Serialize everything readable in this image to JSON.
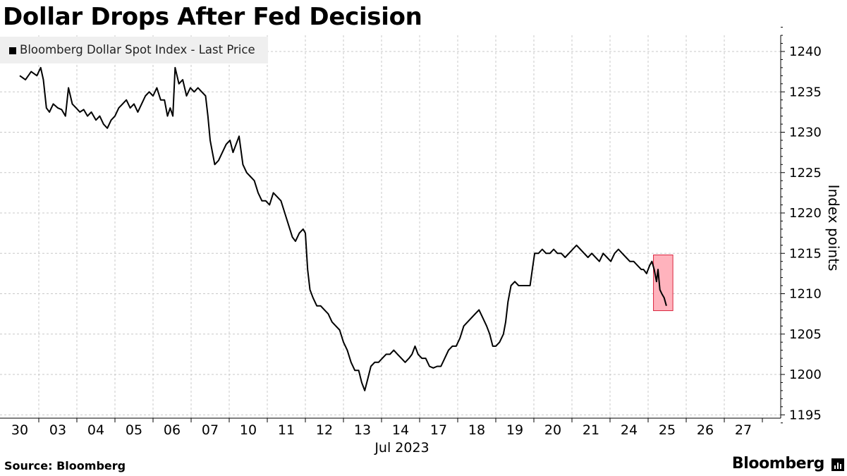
{
  "title": "Dollar Drops After Fed Decision",
  "legend": {
    "label": "Bloomberg Dollar Spot Index - Last Price"
  },
  "source": "Source: Bloomberg",
  "brand": "Bloomberg",
  "chart_data": {
    "type": "line",
    "title": "Dollar Drops After Fed Decision",
    "series": [
      {
        "name": "Bloomberg Dollar Spot Index - Last Price",
        "color": "#000000"
      }
    ],
    "ylabel": "Index points",
    "xlabel": "Jul 2023",
    "ylim": [
      1194,
      1243
    ],
    "yticks": [
      1195,
      1200,
      1205,
      1210,
      1215,
      1220,
      1225,
      1230,
      1235,
      1240
    ],
    "grid": true,
    "x_labels": [
      "30",
      "03",
      "04",
      "05",
      "06",
      "07",
      "10",
      "11",
      "12",
      "13",
      "14",
      "17",
      "18",
      "19",
      "20",
      "21",
      "24",
      "25",
      "26",
      "27"
    ],
    "x_month_label": "Jul 2023",
    "points": [
      [
        0.0,
        1237.0
      ],
      [
        0.15,
        1236.5
      ],
      [
        0.3,
        1237.5
      ],
      [
        0.45,
        1237.0
      ],
      [
        0.55,
        1238.0
      ],
      [
        0.62,
        1236.5
      ],
      [
        0.7,
        1233.0
      ],
      [
        0.78,
        1232.5
      ],
      [
        0.88,
        1233.5
      ],
      [
        1.0,
        1233.0
      ],
      [
        1.1,
        1232.8
      ],
      [
        1.2,
        1232.0
      ],
      [
        1.28,
        1235.5
      ],
      [
        1.38,
        1233.5
      ],
      [
        1.48,
        1233.0
      ],
      [
        1.58,
        1232.5
      ],
      [
        1.68,
        1232.8
      ],
      [
        1.78,
        1232.0
      ],
      [
        1.88,
        1232.5
      ],
      [
        2.0,
        1231.5
      ],
      [
        2.1,
        1232.0
      ],
      [
        2.2,
        1231.0
      ],
      [
        2.3,
        1230.5
      ],
      [
        2.4,
        1231.5
      ],
      [
        2.5,
        1232.0
      ],
      [
        2.6,
        1233.0
      ],
      [
        2.7,
        1233.5
      ],
      [
        2.8,
        1234.0
      ],
      [
        2.9,
        1233.0
      ],
      [
        3.0,
        1233.5
      ],
      [
        3.1,
        1232.5
      ],
      [
        3.2,
        1233.5
      ],
      [
        3.3,
        1234.5
      ],
      [
        3.4,
        1235.0
      ],
      [
        3.5,
        1234.5
      ],
      [
        3.6,
        1235.5
      ],
      [
        3.7,
        1234.0
      ],
      [
        3.8,
        1234.0
      ],
      [
        3.88,
        1232.0
      ],
      [
        3.95,
        1233.0
      ],
      [
        4.02,
        1232.0
      ],
      [
        4.08,
        1238.0
      ],
      [
        4.18,
        1236.0
      ],
      [
        4.28,
        1236.5
      ],
      [
        4.38,
        1234.5
      ],
      [
        4.48,
        1235.5
      ],
      [
        4.58,
        1235.0
      ],
      [
        4.68,
        1235.5
      ],
      [
        4.78,
        1235.0
      ],
      [
        4.88,
        1234.5
      ],
      [
        4.94,
        1232.0
      ],
      [
        5.0,
        1229.0
      ],
      [
        5.06,
        1227.5
      ],
      [
        5.12,
        1226.0
      ],
      [
        5.22,
        1226.5
      ],
      [
        5.32,
        1227.5
      ],
      [
        5.42,
        1228.5
      ],
      [
        5.52,
        1229.0
      ],
      [
        5.6,
        1227.5
      ],
      [
        5.68,
        1228.5
      ],
      [
        5.76,
        1229.5
      ],
      [
        5.86,
        1226.0
      ],
      [
        5.96,
        1225.0
      ],
      [
        6.06,
        1224.5
      ],
      [
        6.16,
        1224.0
      ],
      [
        6.26,
        1222.5
      ],
      [
        6.36,
        1221.5
      ],
      [
        6.46,
        1221.5
      ],
      [
        6.56,
        1221.0
      ],
      [
        6.66,
        1222.5
      ],
      [
        6.76,
        1222.0
      ],
      [
        6.86,
        1221.5
      ],
      [
        6.96,
        1220.0
      ],
      [
        7.06,
        1218.5
      ],
      [
        7.16,
        1217.0
      ],
      [
        7.24,
        1216.5
      ],
      [
        7.34,
        1217.5
      ],
      [
        7.44,
        1218.0
      ],
      [
        7.5,
        1217.5
      ],
      [
        7.56,
        1213.0
      ],
      [
        7.62,
        1210.5
      ],
      [
        7.7,
        1209.5
      ],
      [
        7.8,
        1208.5
      ],
      [
        7.9,
        1208.5
      ],
      [
        8.0,
        1208.0
      ],
      [
        8.1,
        1207.5
      ],
      [
        8.2,
        1206.5
      ],
      [
        8.3,
        1206.0
      ],
      [
        8.4,
        1205.5
      ],
      [
        8.5,
        1204.0
      ],
      [
        8.6,
        1203.0
      ],
      [
        8.7,
        1201.5
      ],
      [
        8.8,
        1200.5
      ],
      [
        8.9,
        1200.5
      ],
      [
        8.98,
        1199.0
      ],
      [
        9.06,
        1198.0
      ],
      [
        9.14,
        1199.5
      ],
      [
        9.22,
        1201.0
      ],
      [
        9.32,
        1201.5
      ],
      [
        9.42,
        1201.5
      ],
      [
        9.52,
        1202.0
      ],
      [
        9.62,
        1202.5
      ],
      [
        9.72,
        1202.5
      ],
      [
        9.82,
        1203.0
      ],
      [
        9.92,
        1202.5
      ],
      [
        10.02,
        1202.0
      ],
      [
        10.12,
        1201.5
      ],
      [
        10.22,
        1202.0
      ],
      [
        10.3,
        1202.5
      ],
      [
        10.38,
        1203.5
      ],
      [
        10.46,
        1202.5
      ],
      [
        10.56,
        1202.0
      ],
      [
        10.66,
        1202.0
      ],
      [
        10.76,
        1201.0
      ],
      [
        10.86,
        1200.8
      ],
      [
        10.96,
        1201.0
      ],
      [
        11.06,
        1201.0
      ],
      [
        11.16,
        1202.0
      ],
      [
        11.26,
        1203.0
      ],
      [
        11.36,
        1203.5
      ],
      [
        11.46,
        1203.5
      ],
      [
        11.56,
        1204.5
      ],
      [
        11.66,
        1206.0
      ],
      [
        11.76,
        1206.5
      ],
      [
        11.86,
        1207.0
      ],
      [
        11.96,
        1207.5
      ],
      [
        12.06,
        1208.0
      ],
      [
        12.16,
        1207.0
      ],
      [
        12.26,
        1206.0
      ],
      [
        12.34,
        1205.0
      ],
      [
        12.42,
        1203.5
      ],
      [
        12.5,
        1203.5
      ],
      [
        12.6,
        1204.0
      ],
      [
        12.7,
        1205.0
      ],
      [
        12.76,
        1206.5
      ],
      [
        12.82,
        1209.0
      ],
      [
        12.9,
        1211.0
      ],
      [
        13.0,
        1211.5
      ],
      [
        13.1,
        1211.0
      ],
      [
        13.2,
        1211.0
      ],
      [
        13.3,
        1211.0
      ],
      [
        13.4,
        1211.0
      ],
      [
        13.46,
        1213.0
      ],
      [
        13.52,
        1215.0
      ],
      [
        13.62,
        1215.0
      ],
      [
        13.72,
        1215.5
      ],
      [
        13.82,
        1215.0
      ],
      [
        13.92,
        1215.0
      ],
      [
        14.02,
        1215.5
      ],
      [
        14.12,
        1215.0
      ],
      [
        14.22,
        1215.0
      ],
      [
        14.32,
        1214.5
      ],
      [
        14.42,
        1215.0
      ],
      [
        14.52,
        1215.5
      ],
      [
        14.62,
        1216.0
      ],
      [
        14.72,
        1215.5
      ],
      [
        14.82,
        1215.0
      ],
      [
        14.92,
        1214.5
      ],
      [
        15.02,
        1215.0
      ],
      [
        15.12,
        1214.5
      ],
      [
        15.22,
        1214.0
      ],
      [
        15.32,
        1215.0
      ],
      [
        15.42,
        1214.5
      ],
      [
        15.52,
        1214.0
      ],
      [
        15.62,
        1215.0
      ],
      [
        15.72,
        1215.5
      ],
      [
        15.82,
        1215.0
      ],
      [
        15.92,
        1214.5
      ],
      [
        16.02,
        1214.0
      ],
      [
        16.12,
        1214.0
      ],
      [
        16.22,
        1213.5
      ],
      [
        16.32,
        1213.0
      ],
      [
        16.38,
        1213.0
      ],
      [
        16.46,
        1212.5
      ],
      [
        16.54,
        1213.5
      ],
      [
        16.6,
        1214.0
      ],
      [
        16.66,
        1213.0
      ],
      [
        16.72,
        1211.5
      ],
      [
        16.76,
        1213.0
      ],
      [
        16.81,
        1210.5
      ],
      [
        16.86,
        1210.0
      ],
      [
        16.92,
        1209.5
      ],
      [
        16.98,
        1208.5
      ]
    ]
  }
}
